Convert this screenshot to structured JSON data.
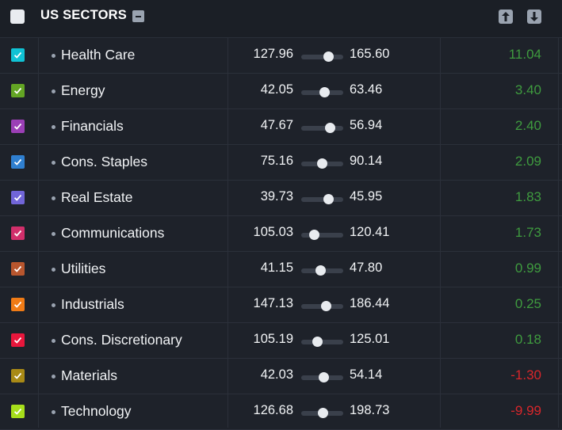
{
  "header": {
    "title": "US SECTORS",
    "sort_up_icon": "arrow-up-icon",
    "sort_down_icon": "arrow-down-icon"
  },
  "colors": {
    "positive": "#3f9b3f",
    "negative": "#d9262b"
  },
  "rows": [
    {
      "name": "Health Care",
      "low": "127.96",
      "high": "165.60",
      "position": 0.65,
      "change": "11.04",
      "color": "#10c2d4"
    },
    {
      "name": "Energy",
      "low": "42.05",
      "high": "63.46",
      "position": 0.55,
      "change": "3.40",
      "color": "#63a524"
    },
    {
      "name": "Financials",
      "low": "47.67",
      "high": "56.94",
      "position": 0.68,
      "change": "2.40",
      "color": "#9b3fb6"
    },
    {
      "name": "Cons. Staples",
      "low": "75.16",
      "high": "90.14",
      "position": 0.5,
      "change": "2.09",
      "color": "#2f7fd0"
    },
    {
      "name": "Real Estate",
      "low": "39.73",
      "high": "45.95",
      "position": 0.66,
      "change": "1.83",
      "color": "#7165d8"
    },
    {
      "name": "Communications",
      "low": "105.03",
      "high": "120.41",
      "position": 0.32,
      "change": "1.73",
      "color": "#d12f6b"
    },
    {
      "name": "Utilities",
      "low": "41.15",
      "high": "47.80",
      "position": 0.46,
      "change": "0.99",
      "color": "#b8562e"
    },
    {
      "name": "Industrials",
      "low": "147.13",
      "high": "186.44",
      "position": 0.59,
      "change": "0.25",
      "color": "#f07b16"
    },
    {
      "name": "Cons. Discretionary",
      "low": "105.19",
      "high": "125.01",
      "position": 0.39,
      "change": "0.18",
      "color": "#e8173c"
    },
    {
      "name": "Materials",
      "low": "42.03",
      "high": "54.14",
      "position": 0.53,
      "change": "-1.30",
      "color": "#a98a16"
    },
    {
      "name": "Technology",
      "low": "126.68",
      "high": "198.73",
      "position": 0.51,
      "change": "-9.99",
      "color": "#a6de1b"
    }
  ]
}
